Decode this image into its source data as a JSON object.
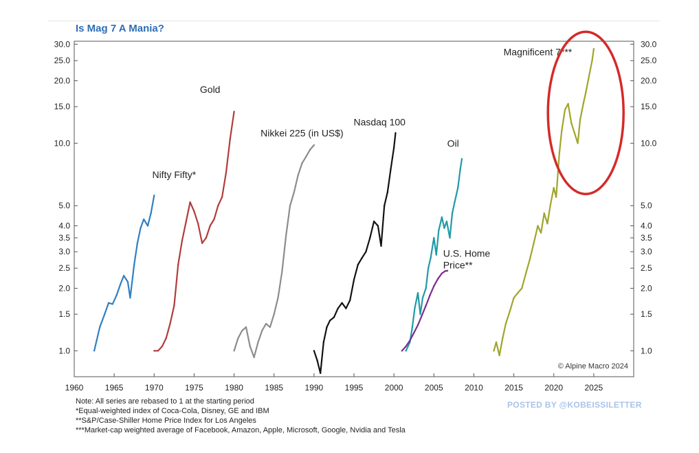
{
  "title": "Is Mag 7 A Mania?",
  "watermark": "POSTED BY @KOBEISSILETTER",
  "credit": "© Alpine Macro 2024",
  "notes": [
    "Note: All series are rebased to 1 at the starting period",
    "*Equal-weighted index of Coca-Cola, Disney, GE and IBM",
    "**S&P/Case-Shiller Home Price Index for Los Angeles",
    "***Market-cap weighted average of Facebook, Amazon, Apple, Microsoft, Google, Nvidia and Tesla"
  ],
  "colors": {
    "title": "#2f6eb5",
    "highlight_circle": "#d42a2a"
  },
  "chart_data": {
    "type": "line",
    "title": "Is Mag 7 A Mania?",
    "xlabel": "",
    "ylabel": "",
    "y_scale": "log",
    "xlim": [
      1960,
      2030
    ],
    "ylim": [
      0.75,
      31
    ],
    "x_ticks": [
      1960,
      1965,
      1970,
      1975,
      1980,
      1985,
      1990,
      1995,
      2000,
      2005,
      2010,
      2015,
      2020,
      2025
    ],
    "y_ticks": [
      1.0,
      1.5,
      2.0,
      2.5,
      3.0,
      3.5,
      4.0,
      5.0,
      10.0,
      15.0,
      20.0,
      25.0,
      30.0
    ],
    "y_tick_labels": [
      "1.0",
      "1.5",
      "2.0",
      "2.5",
      "3.0",
      "3.5",
      "4.0",
      "5.0",
      "10.0",
      "15.0",
      "20.0",
      "25.0",
      "30.0"
    ],
    "right_axis": true,
    "grid": false,
    "highlight": {
      "label": "Magnificent 7***",
      "shape": "circle",
      "x_center": 2024,
      "y_center": 14
    },
    "series": [
      {
        "name": "Nifty Fifty*",
        "color": "#2f7fc1",
        "label_pos": {
          "x": 1972.5,
          "y": 6.8
        },
        "x": [
          1962.5,
          1962.8,
          1963.2,
          1963.8,
          1964.3,
          1964.8,
          1965.3,
          1965.8,
          1966.2,
          1966.7,
          1967.0,
          1967.5,
          1967.9,
          1968.3,
          1968.7,
          1969.2,
          1969.6,
          1970.0
        ],
        "y": [
          1.0,
          1.12,
          1.3,
          1.5,
          1.7,
          1.68,
          1.85,
          2.1,
          2.3,
          2.15,
          1.8,
          2.6,
          3.3,
          3.9,
          4.3,
          4.0,
          4.6,
          5.6
        ]
      },
      {
        "name": "Gold",
        "color": "#b23b3b",
        "label_pos": {
          "x": 1977.0,
          "y": 17.5
        },
        "x": [
          1970.0,
          1970.5,
          1971.0,
          1971.5,
          1972.0,
          1972.5,
          1973.0,
          1973.5,
          1974.0,
          1974.5,
          1975.0,
          1975.5,
          1976.0,
          1976.5,
          1977.0,
          1977.5,
          1978.0,
          1978.5,
          1979.0,
          1979.5,
          1980.0
        ],
        "y": [
          1.0,
          1.0,
          1.05,
          1.15,
          1.35,
          1.65,
          2.6,
          3.4,
          4.2,
          5.2,
          4.7,
          4.1,
          3.3,
          3.5,
          4.0,
          4.3,
          5.0,
          5.5,
          7.2,
          10.5,
          14.2
        ]
      },
      {
        "name": "Nikkei 225 (in US$)",
        "color": "#8c8c8c",
        "label_pos": {
          "x": 1988.5,
          "y": 10.8
        },
        "x": [
          1980.0,
          1980.5,
          1981.0,
          1981.5,
          1982.0,
          1982.5,
          1983.0,
          1983.5,
          1984.0,
          1984.5,
          1985.0,
          1985.5,
          1986.0,
          1986.5,
          1987.0,
          1987.5,
          1988.0,
          1988.5,
          1989.0,
          1989.5,
          1990.0
        ],
        "y": [
          1.0,
          1.15,
          1.25,
          1.3,
          1.05,
          0.93,
          1.1,
          1.25,
          1.35,
          1.3,
          1.5,
          1.8,
          2.4,
          3.6,
          5.0,
          5.8,
          7.0,
          8.0,
          8.6,
          9.3,
          9.8
        ]
      },
      {
        "name": "Nasdaq 100",
        "color": "#111111",
        "label_pos": {
          "x": 1998.2,
          "y": 12.2
        },
        "x": [
          1990.0,
          1990.4,
          1990.8,
          1991.2,
          1991.6,
          1992.0,
          1992.5,
          1993.0,
          1993.5,
          1994.0,
          1994.5,
          1995.0,
          1995.5,
          1996.0,
          1996.5,
          1997.0,
          1997.5,
          1998.0,
          1998.4,
          1998.8,
          1999.2,
          1999.6,
          2000.0,
          2000.2
        ],
        "y": [
          1.0,
          0.9,
          0.78,
          1.1,
          1.3,
          1.4,
          1.45,
          1.6,
          1.7,
          1.6,
          1.75,
          2.2,
          2.6,
          2.8,
          3.0,
          3.5,
          4.2,
          4.0,
          3.2,
          5.0,
          5.8,
          7.5,
          9.5,
          11.2
        ]
      },
      {
        "name": "Oil",
        "color": "#1f9aa6",
        "label_pos": {
          "x": 2007.4,
          "y": 9.6
        },
        "x": [
          2001.5,
          2002.0,
          2002.3,
          2002.6,
          2003.0,
          2003.3,
          2003.6,
          2004.0,
          2004.3,
          2004.6,
          2005.0,
          2005.3,
          2005.6,
          2006.0,
          2006.3,
          2006.6,
          2007.0,
          2007.3,
          2007.6,
          2008.0,
          2008.3,
          2008.5
        ],
        "y": [
          1.0,
          1.1,
          1.3,
          1.6,
          1.9,
          1.5,
          1.8,
          2.0,
          2.5,
          2.8,
          3.5,
          2.9,
          3.8,
          4.4,
          3.9,
          4.2,
          3.5,
          4.6,
          5.2,
          6.1,
          7.5,
          8.4
        ]
      },
      {
        "name": "U.S. Home Price**",
        "color": "#7b2c8f",
        "label_pos": {
          "x": 2006.5,
          "y": 2.55
        },
        "x": [
          2001.0,
          2001.5,
          2002.0,
          2002.5,
          2003.0,
          2003.5,
          2004.0,
          2004.5,
          2005.0,
          2005.5,
          2006.0,
          2006.4,
          2006.7
        ],
        "y": [
          1.0,
          1.05,
          1.12,
          1.22,
          1.33,
          1.48,
          1.65,
          1.85,
          2.05,
          2.22,
          2.36,
          2.42,
          2.43
        ]
      },
      {
        "name": "Magnificent 7***",
        "color": "#a0a52a",
        "label_pos": {
          "x": 2018.0,
          "y": 26.5
        },
        "x": [
          2012.5,
          2012.8,
          2013.2,
          2013.6,
          2014.0,
          2014.5,
          2015.0,
          2015.5,
          2016.0,
          2016.5,
          2017.0,
          2017.5,
          2018.0,
          2018.4,
          2018.8,
          2019.2,
          2019.6,
          2020.0,
          2020.3,
          2020.7,
          2021.0,
          2021.4,
          2021.8,
          2022.2,
          2022.6,
          2023.0,
          2023.3,
          2023.7,
          2024.0,
          2024.4,
          2024.8,
          2025.0
        ],
        "y": [
          1.0,
          1.1,
          0.95,
          1.15,
          1.35,
          1.55,
          1.8,
          1.9,
          2.0,
          2.35,
          2.75,
          3.3,
          4.0,
          3.7,
          4.6,
          4.1,
          5.1,
          6.1,
          5.5,
          9.0,
          11.5,
          14.5,
          15.5,
          12.5,
          11.2,
          10.0,
          13.0,
          15.5,
          17.5,
          21.0,
          25.0,
          28.5
        ]
      }
    ]
  }
}
